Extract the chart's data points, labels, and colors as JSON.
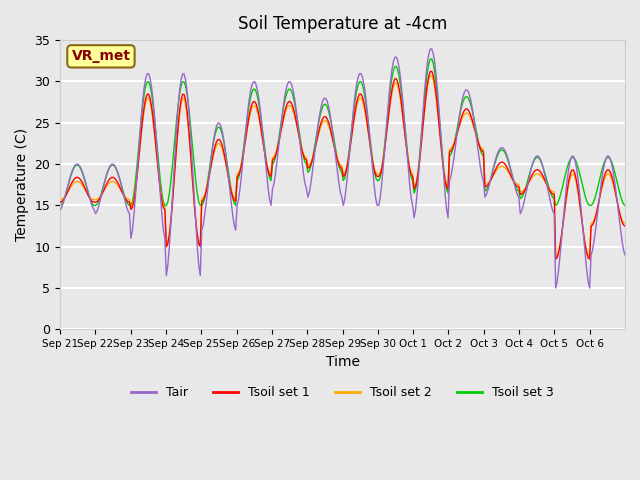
{
  "title": "Soil Temperature at -4cm",
  "xlabel": "Time",
  "ylabel": "Temperature (C)",
  "ylim": [
    0,
    35
  ],
  "yticks": [
    0,
    5,
    10,
    15,
    20,
    25,
    30,
    35
  ],
  "plot_bg_color": "#e8e8e8",
  "grid_color": "white",
  "annotation_text": "VR_met",
  "annotation_bg": "#ffff99",
  "annotation_border": "#8B6914",
  "annotation_text_color": "#8B0000",
  "x_labels": [
    "Sep 21",
    "Sep 22",
    "Sep 23",
    "Sep 24",
    "Sep 25",
    "Sep 26",
    "Sep 27",
    "Sep 28",
    "Sep 29",
    "Sep 30",
    "Oct 1",
    "Oct 2",
    "Oct 3",
    "Oct 4",
    "Oct 5",
    "Oct 6"
  ],
  "colors": {
    "Tair": "#9966cc",
    "Tsoil1": "#ff0000",
    "Tsoil2": "#ffaa00",
    "Tsoil3": "#00cc00"
  },
  "legend_labels": [
    "Tair",
    "Tsoil set 1",
    "Tsoil set 2",
    "Tsoil set 3"
  ],
  "tair_min_arr": [
    14.5,
    14.0,
    11.0,
    6.5,
    12.0,
    15.0,
    17.0,
    16.0,
    15.0,
    15.0,
    13.5,
    18.0,
    16.0,
    14.0,
    5.0,
    9.0
  ],
  "tair_max_arr": [
    20.0,
    20.0,
    31.0,
    31.0,
    25.0,
    30.0,
    30.0,
    28.0,
    31.0,
    33.0,
    34.0,
    29.0,
    22.0,
    21.0,
    21.0,
    21.0
  ]
}
